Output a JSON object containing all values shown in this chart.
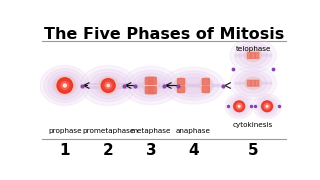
{
  "title": "The Five Phases of Mitosis",
  "title_fontsize": 11.5,
  "title_fontweight": "bold",
  "bg_color": "#ffffff",
  "cell_outer_color": "#e8d0ee",
  "cell_mid_color": "#ddbde8",
  "nucleus_fill": "#f0c8c8",
  "chrom_color": "#e87060",
  "center_bright": "#e83020",
  "center_light": "#ff9090",
  "dot_color": "#8844aa",
  "spindle_color": "#ccaadd",
  "phases": [
    "prophase",
    "prometaphase",
    "metaphase",
    "anaphase"
  ],
  "phase5_top": "telophase",
  "phase5_bot": "cytokinesis",
  "numbers": [
    "1",
    "2",
    "3",
    "4",
    "5"
  ],
  "arrow_color": "#111111",
  "line_color": "#999999",
  "label_fontsize": 5.2,
  "number_fontsize": 11,
  "number_fontweight": "bold"
}
